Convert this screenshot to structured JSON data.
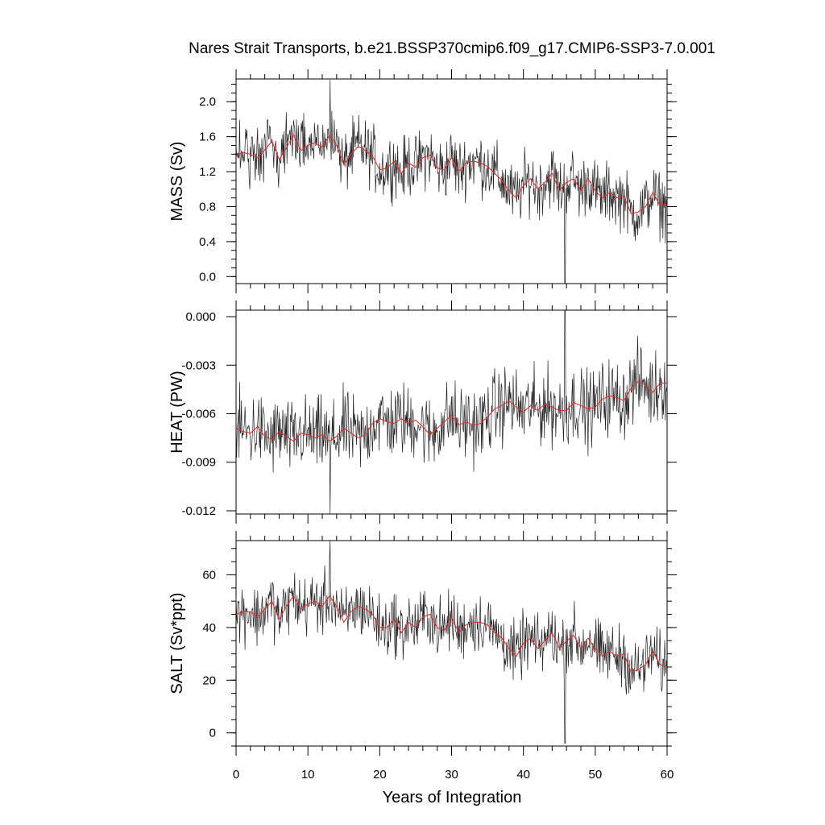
{
  "chart_data": [
    {
      "type": "line",
      "title": "Nares Strait Transports, b.e21.BSSP370cmip6.f09_g17.CMIP6-SSP3-7.0.001",
      "xlabel": "Years of Integration",
      "ylabel": "MASS (Sv)",
      "xlim": [
        0,
        60
      ],
      "ylim": [
        -0.08,
        2.26
      ],
      "xticks": [
        0,
        10,
        20,
        30,
        40,
        50,
        60
      ],
      "yticks": [
        0.0,
        0.4,
        0.8,
        1.2,
        1.6,
        2.0
      ],
      "ytick_labels": [
        "0.0",
        "0.4",
        "0.8",
        "1.2",
        "1.6",
        "2.0"
      ],
      "series": [
        {
          "role": "monthly",
          "color": "#222222",
          "mean": 1.15,
          "trend_per_year": -0.0095,
          "amplitude": 0.26,
          "max": 2.25,
          "max_at": 13.1,
          "min": -0.08,
          "min_at": 45.8
        },
        {
          "role": "annual-mean",
          "color": "#e03030",
          "x": [
            0,
            1,
            2,
            3,
            4,
            5,
            6,
            7,
            8,
            9,
            10,
            11,
            12,
            13,
            14,
            15,
            16,
            17,
            18,
            19,
            20,
            21,
            22,
            23,
            24,
            25,
            26,
            27,
            28,
            29,
            30,
            31,
            32,
            33,
            34,
            35,
            36,
            37,
            38,
            39,
            40,
            41,
            42,
            43,
            44,
            45,
            46,
            47,
            48,
            49,
            50,
            51,
            52,
            53,
            54,
            55,
            56,
            57,
            58,
            59,
            60
          ],
          "values": [
            1.38,
            1.42,
            1.4,
            1.36,
            1.45,
            1.55,
            1.34,
            1.47,
            1.62,
            1.44,
            1.5,
            1.53,
            1.48,
            1.62,
            1.5,
            1.28,
            1.4,
            1.49,
            1.44,
            1.38,
            1.22,
            1.24,
            1.32,
            1.18,
            1.3,
            1.25,
            1.36,
            1.39,
            1.24,
            1.22,
            1.36,
            1.2,
            1.3,
            1.32,
            1.3,
            1.26,
            1.18,
            1.1,
            0.98,
            0.9,
            1.04,
            1.12,
            1.0,
            1.08,
            1.18,
            0.98,
            1.08,
            1.12,
            0.98,
            1.12,
            0.98,
            0.9,
            0.96,
            0.9,
            0.92,
            0.72,
            0.74,
            0.8,
            0.96,
            0.82,
            0.82
          ]
        }
      ]
    },
    {
      "type": "line",
      "ylabel": "HEAT (PW)",
      "xlim": [
        0,
        60
      ],
      "ylim": [
        -0.0122,
        0.0004
      ],
      "xticks": [
        0,
        10,
        20,
        30,
        40,
        50,
        60
      ],
      "yticks": [
        0.0,
        -0.003,
        -0.006,
        -0.009,
        -0.012
      ],
      "ytick_labels": [
        "0.000",
        "-0.003",
        "-0.006",
        "-0.009",
        "-0.012"
      ],
      "series": [
        {
          "role": "monthly",
          "color": "#222222",
          "mean": -0.0058,
          "trend_per_year": 6.67e-05,
          "amplitude": 0.0017,
          "max": 0.0004,
          "max_at": 45.8,
          "min": -0.0122,
          "min_at": 13.1
        },
        {
          "role": "annual-mean",
          "color": "#e03030",
          "x": [
            0,
            1,
            2,
            3,
            4,
            5,
            6,
            7,
            8,
            9,
            10,
            11,
            12,
            13,
            14,
            15,
            16,
            17,
            18,
            19,
            20,
            21,
            22,
            23,
            24,
            25,
            26,
            27,
            28,
            29,
            30,
            31,
            32,
            33,
            34,
            35,
            36,
            37,
            38,
            39,
            40,
            41,
            42,
            43,
            44,
            45,
            46,
            47,
            48,
            49,
            50,
            51,
            52,
            53,
            54,
            55,
            56,
            57,
            58,
            59,
            60
          ],
          "values": [
            -0.0069,
            -0.0071,
            -0.0072,
            -0.0068,
            -0.0074,
            -0.0076,
            -0.0071,
            -0.0074,
            -0.0077,
            -0.0072,
            -0.0073,
            -0.0075,
            -0.0073,
            -0.0077,
            -0.0074,
            -0.0069,
            -0.0072,
            -0.0075,
            -0.0073,
            -0.0066,
            -0.0063,
            -0.0065,
            -0.0066,
            -0.0063,
            -0.0066,
            -0.0064,
            -0.0068,
            -0.0073,
            -0.0069,
            -0.0065,
            -0.0061,
            -0.0067,
            -0.0065,
            -0.0067,
            -0.0066,
            -0.0062,
            -0.0057,
            -0.0055,
            -0.0052,
            -0.0056,
            -0.0059,
            -0.0055,
            -0.0058,
            -0.0054,
            -0.0056,
            -0.0058,
            -0.0058,
            -0.0053,
            -0.0055,
            -0.0057,
            -0.0056,
            -0.0051,
            -0.0049,
            -0.005,
            -0.0052,
            -0.0044,
            -0.004,
            -0.0042,
            -0.0047,
            -0.0041,
            -0.0041
          ]
        }
      ]
    },
    {
      "type": "line",
      "ylabel": "SALT (Sv*ppt)",
      "xlim": [
        0,
        60
      ],
      "ylim": [
        -5,
        73
      ],
      "xticks": [
        0,
        10,
        20,
        30,
        40,
        50,
        60
      ],
      "xtick_labels": [
        "0",
        "10",
        "20",
        "30",
        "40",
        "50",
        "60"
      ],
      "yticks": [
        0,
        20,
        40,
        60
      ],
      "ytick_labels": [
        "0",
        "20",
        "40",
        "60"
      ],
      "series": [
        {
          "role": "monthly",
          "color": "#222222",
          "mean": 37.5,
          "trend_per_year": -0.31,
          "amplitude": 8.5,
          "max": 73,
          "max_at": 13.1,
          "min": -4,
          "min_at": 45.8
        },
        {
          "role": "annual-mean",
          "color": "#e03030",
          "x": [
            0,
            1,
            2,
            3,
            4,
            5,
            6,
            7,
            8,
            9,
            10,
            11,
            12,
            13,
            14,
            15,
            16,
            17,
            18,
            19,
            20,
            21,
            22,
            23,
            24,
            25,
            26,
            27,
            28,
            29,
            30,
            31,
            32,
            33,
            34,
            35,
            36,
            37,
            38,
            39,
            40,
            41,
            42,
            43,
            44,
            45,
            46,
            47,
            48,
            49,
            50,
            51,
            52,
            53,
            54,
            55,
            56,
            57,
            58,
            59,
            60
          ],
          "values": [
            45,
            46,
            46,
            44,
            47,
            50,
            43,
            48,
            52,
            47,
            49,
            50,
            48,
            52,
            48,
            42,
            46,
            48,
            47,
            45,
            40,
            40,
            43,
            38,
            42,
            40,
            44,
            45,
            40,
            39,
            44,
            38,
            41,
            42,
            42,
            41,
            38,
            36,
            32,
            29,
            34,
            36,
            32,
            35,
            38,
            32,
            35,
            37,
            32,
            36,
            32,
            29,
            31,
            29,
            30,
            23,
            24,
            26,
            31,
            26,
            25
          ]
        }
      ]
    }
  ]
}
